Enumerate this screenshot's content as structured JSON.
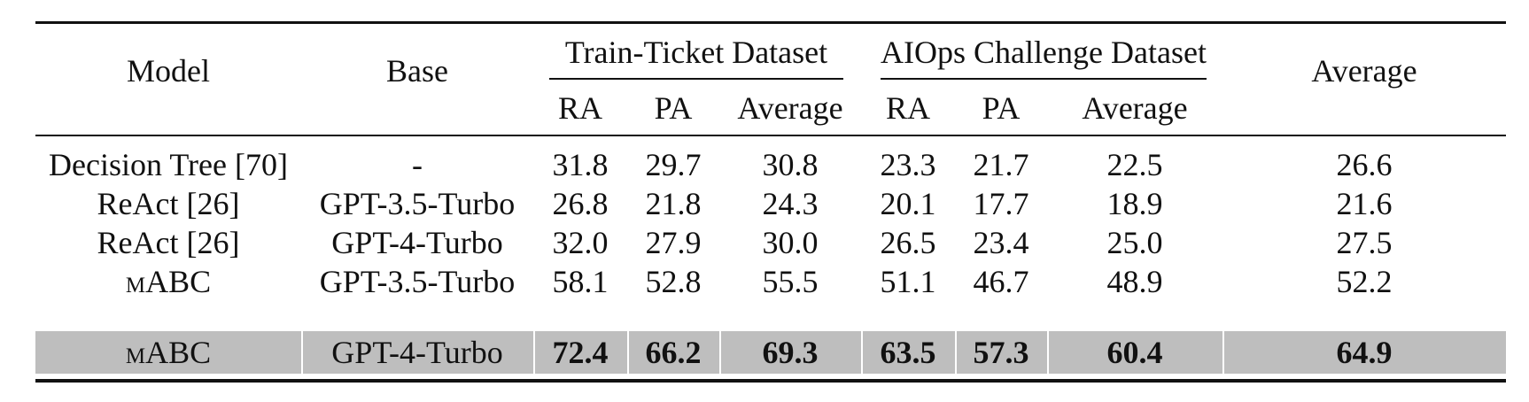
{
  "header": {
    "model": "Model",
    "base": "Base",
    "group1": "Train-Ticket Dataset",
    "group2": "AIOps Challenge Dataset",
    "average": "Average",
    "ra": "RA",
    "pa": "PA",
    "avg": "Average"
  },
  "rows": [
    {
      "model": "Decision Tree [70]",
      "base": "-",
      "tt_ra": "31.8",
      "tt_pa": "29.7",
      "tt_avg": "30.8",
      "ai_ra": "23.3",
      "ai_pa": "21.7",
      "ai_avg": "22.5",
      "avg": "26.6"
    },
    {
      "model": "ReAct [26]",
      "base": "GPT-3.5-Turbo",
      "tt_ra": "26.8",
      "tt_pa": "21.8",
      "tt_avg": "24.3",
      "ai_ra": "20.1",
      "ai_pa": "17.7",
      "ai_avg": "18.9",
      "avg": "21.6"
    },
    {
      "model": "ReAct [26]",
      "base": "GPT-4-Turbo",
      "tt_ra": "32.0",
      "tt_pa": "27.9",
      "tt_avg": "30.0",
      "ai_ra": "26.5",
      "ai_pa": "23.4",
      "ai_avg": "25.0",
      "avg": "27.5"
    },
    {
      "model": "mABC",
      "base": "GPT-3.5-Turbo",
      "tt_ra": "58.1",
      "tt_pa": "52.8",
      "tt_avg": "55.5",
      "ai_ra": "51.1",
      "ai_pa": "46.7",
      "ai_avg": "48.9",
      "avg": "52.2"
    },
    {
      "model": "mABC",
      "base": "GPT-4-Turbo",
      "tt_ra": "72.4",
      "tt_pa": "66.2",
      "tt_avg": "69.3",
      "ai_ra": "63.5",
      "ai_pa": "57.3",
      "ai_avg": "60.4",
      "avg": "64.9"
    }
  ],
  "style": {
    "highlight_row_color": "#bebebe",
    "rule_color": "#111111"
  }
}
